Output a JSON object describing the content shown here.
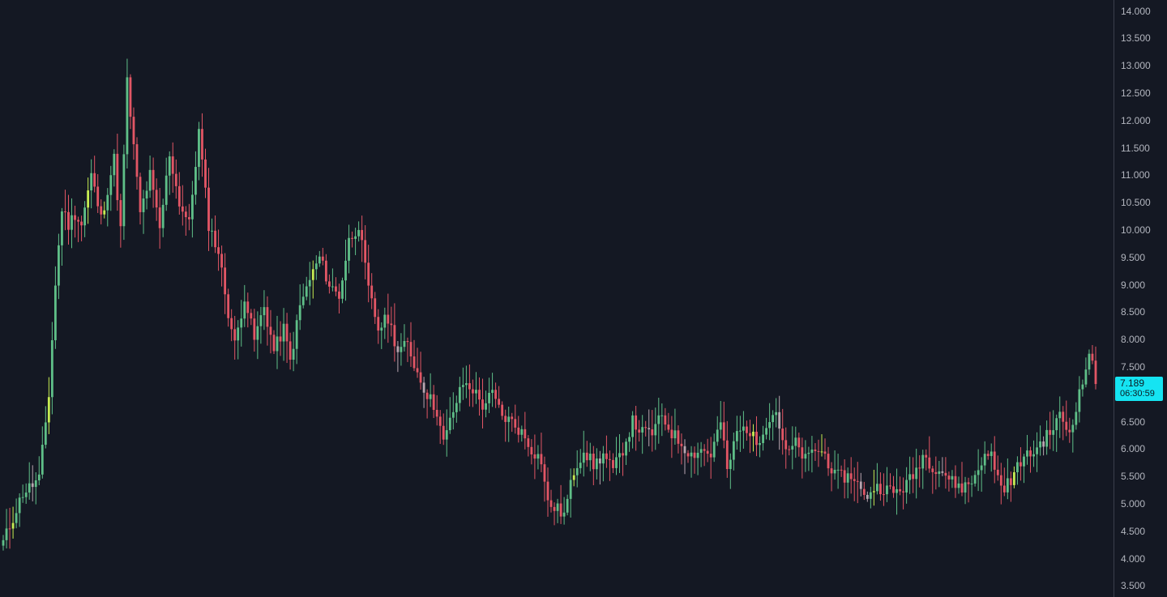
{
  "chart_data": {
    "type": "candlestick",
    "ylim": [
      3.3,
      14.2
    ],
    "y_ticks": [
      "3.500",
      "4.000",
      "4.500",
      "5.000",
      "5.500",
      "6.000",
      "6.500",
      "7.000",
      "7.500",
      "8.000",
      "8.500",
      "9.000",
      "9.500",
      "10.000",
      "10.500",
      "11.000",
      "11.500",
      "12.000",
      "12.500",
      "13.000",
      "13.500",
      "14.000"
    ],
    "colors": {
      "up": "#5fbf88",
      "down": "#e25665",
      "accent_up": "#c6ec52",
      "neutral": "#b9a5b0",
      "background": "#141823"
    },
    "close_path": [
      [
        0,
        4.3
      ],
      [
        6,
        5.2
      ],
      [
        11,
        5.45
      ],
      [
        14,
        7.0
      ],
      [
        16,
        9.0
      ],
      [
        18,
        10.4
      ],
      [
        20,
        10.1
      ],
      [
        22,
        10.3
      ],
      [
        24,
        10.1
      ],
      [
        27,
        11.0
      ],
      [
        30,
        10.2
      ],
      [
        34,
        11.3
      ],
      [
        36,
        10.0
      ],
      [
        38,
        12.7
      ],
      [
        42,
        10.3
      ],
      [
        45,
        11.0
      ],
      [
        48,
        10.0
      ],
      [
        51,
        11.4
      ],
      [
        54,
        10.5
      ],
      [
        57,
        10.1
      ],
      [
        60,
        11.8
      ],
      [
        63,
        10.1
      ],
      [
        66,
        9.6
      ],
      [
        69,
        8.5
      ],
      [
        71,
        7.9
      ],
      [
        74,
        8.8
      ],
      [
        77,
        8.0
      ],
      [
        80,
        8.6
      ],
      [
        83,
        7.8
      ],
      [
        86,
        8.2
      ],
      [
        88,
        7.6
      ],
      [
        91,
        8.6
      ],
      [
        94,
        9.1
      ],
      [
        97,
        9.5
      ],
      [
        100,
        9.0
      ],
      [
        103,
        8.8
      ],
      [
        106,
        9.8
      ],
      [
        109,
        10.1
      ],
      [
        112,
        8.9
      ],
      [
        115,
        8.2
      ],
      [
        118,
        8.4
      ],
      [
        121,
        7.8
      ],
      [
        124,
        7.9
      ],
      [
        127,
        7.4
      ],
      [
        130,
        7.0
      ],
      [
        133,
        6.7
      ],
      [
        135,
        6.1
      ],
      [
        138,
        6.7
      ],
      [
        141,
        7.2
      ],
      [
        144,
        7.1
      ],
      [
        147,
        6.8
      ],
      [
        150,
        7.0
      ],
      [
        153,
        6.6
      ],
      [
        156,
        6.5
      ],
      [
        159,
        6.3
      ],
      [
        162,
        6.0
      ],
      [
        165,
        5.8
      ],
      [
        167,
        5.0
      ],
      [
        170,
        4.9
      ],
      [
        172,
        4.8
      ],
      [
        175,
        5.6
      ],
      [
        178,
        6.0
      ],
      [
        181,
        5.7
      ],
      [
        184,
        5.9
      ],
      [
        187,
        5.6
      ],
      [
        190,
        6.0
      ],
      [
        193,
        6.5
      ],
      [
        196,
        6.3
      ],
      [
        199,
        6.3
      ],
      [
        202,
        6.6
      ],
      [
        205,
        6.3
      ],
      [
        208,
        6.1
      ],
      [
        211,
        5.9
      ],
      [
        214,
        6.0
      ],
      [
        217,
        5.9
      ],
      [
        220,
        6.5
      ],
      [
        222,
        5.6
      ],
      [
        225,
        6.3
      ],
      [
        228,
        6.4
      ],
      [
        231,
        6.1
      ],
      [
        234,
        6.5
      ],
      [
        237,
        6.7
      ],
      [
        240,
        5.9
      ],
      [
        243,
        6.1
      ],
      [
        246,
        5.8
      ],
      [
        249,
        6.0
      ],
      [
        252,
        5.9
      ],
      [
        255,
        5.5
      ],
      [
        258,
        5.5
      ],
      [
        261,
        5.5
      ],
      [
        264,
        5.1
      ],
      [
        267,
        5.3
      ],
      [
        270,
        5.3
      ],
      [
        273,
        5.2
      ],
      [
        276,
        5.3
      ],
      [
        279,
        5.5
      ],
      [
        282,
        5.9
      ],
      [
        285,
        5.7
      ],
      [
        288,
        5.6
      ],
      [
        291,
        5.4
      ],
      [
        294,
        5.3
      ],
      [
        297,
        5.4
      ],
      [
        300,
        5.8
      ],
      [
        303,
        5.9
      ],
      [
        306,
        5.3
      ],
      [
        309,
        5.4
      ],
      [
        312,
        5.8
      ],
      [
        315,
        5.9
      ],
      [
        318,
        6.1
      ],
      [
        321,
        6.3
      ],
      [
        324,
        6.6
      ],
      [
        327,
        6.3
      ],
      [
        329,
        6.8
      ],
      [
        331,
        7.2
      ],
      [
        333,
        7.8
      ],
      [
        335,
        7.2
      ]
    ],
    "last_price": "7.189",
    "countdown": "06:30:59"
  }
}
